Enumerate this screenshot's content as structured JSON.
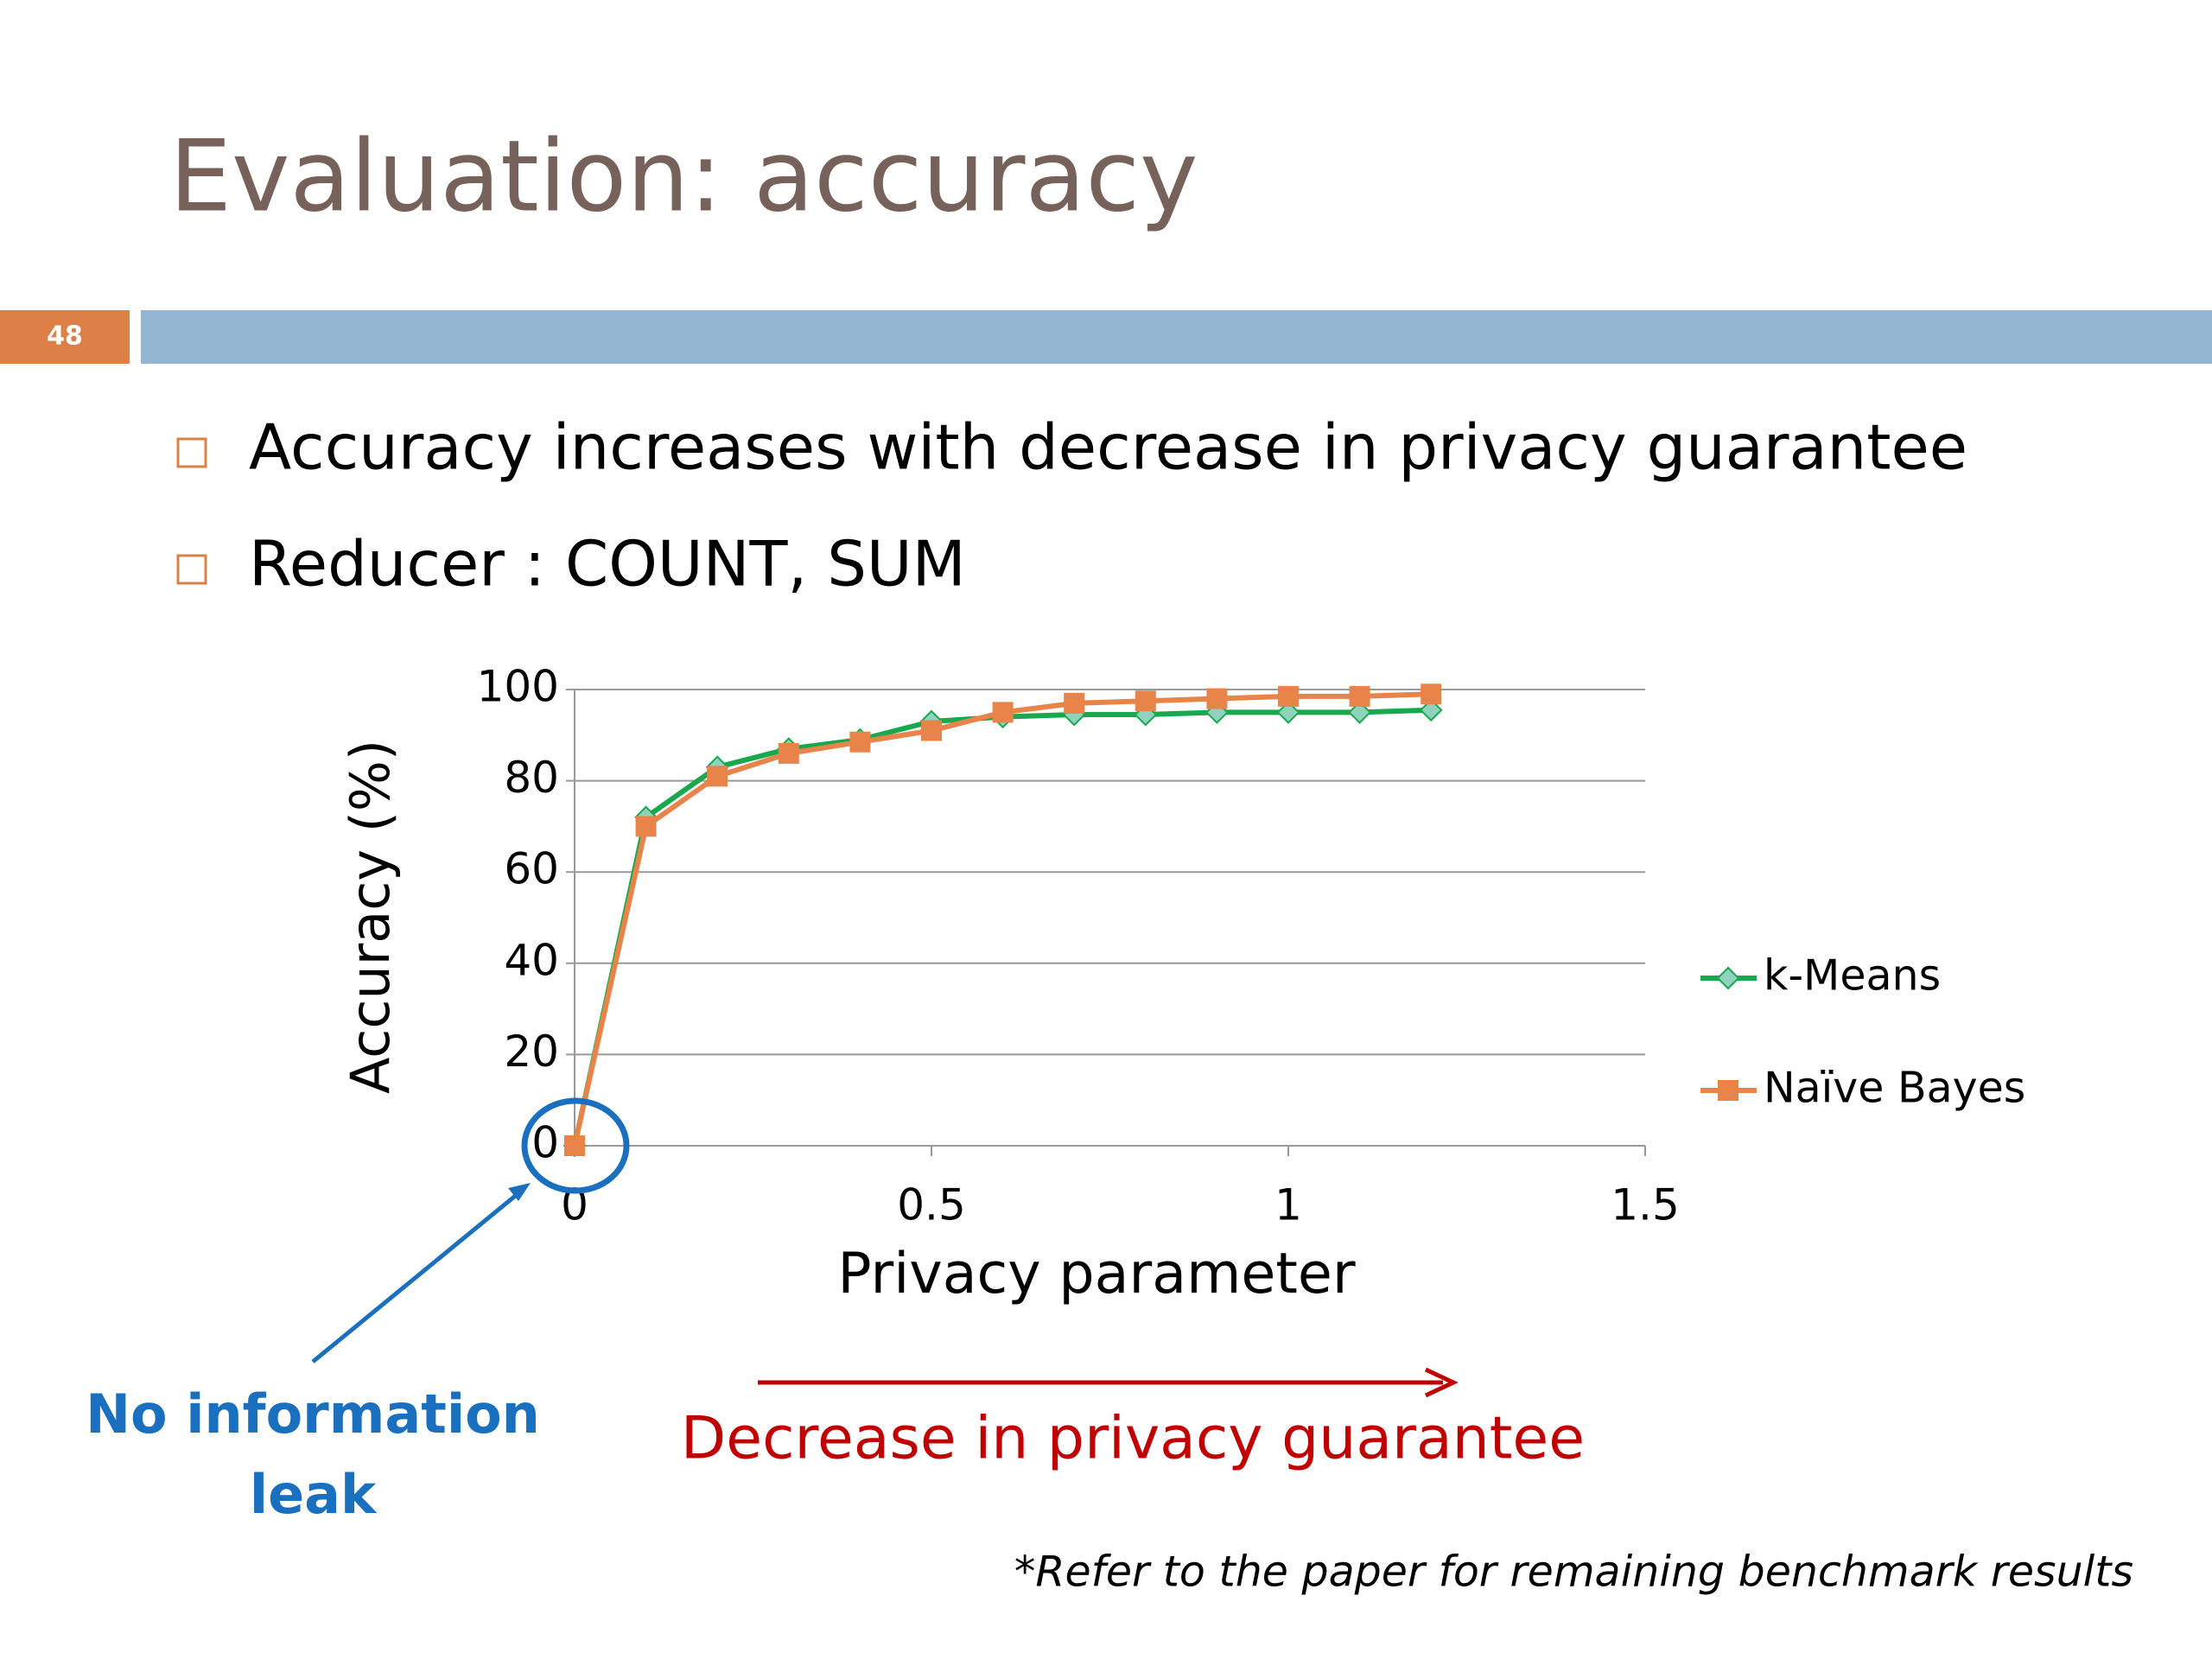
{
  "slide": {
    "title": "Evaluation: accuracy",
    "page_number": "48",
    "bullets": [
      "Accuracy increases with decrease in privacy guarantee",
      "Reducer : COUNT, SUM"
    ],
    "annotations": {
      "origin_note": [
        "No information",
        "leak"
      ],
      "arrow_note": "Decrease in privacy guarantee",
      "footnote": "*Refer to the paper for remaining benchmark results"
    }
  },
  "chart_data": {
    "type": "line",
    "x_label": "Privacy parameter",
    "y_label": "Accuracy (%)",
    "x": [
      0,
      0.1,
      0.2,
      0.3,
      0.4,
      0.5,
      0.6,
      0.7,
      0.8,
      0.9,
      1,
      1.1,
      1.2
    ],
    "series": [
      {
        "name": "k-Means",
        "color": "#1aa84e",
        "values": [
          0,
          72,
          83,
          87,
          89,
          93,
          94,
          94.5,
          94.5,
          95,
          95,
          95,
          95.5
        ]
      },
      {
        "name": "Naïve Bayes",
        "color": "#e8844a",
        "values": [
          0,
          70,
          81,
          86,
          88.5,
          91,
          95,
          97,
          97.5,
          98,
          98.5,
          98.5,
          99
        ]
      }
    ],
    "xlim": [
      0,
      1.5
    ],
    "xticks": [
      0,
      0.5,
      1,
      1.5
    ],
    "ylim": [
      0,
      100
    ],
    "yticks": [
      0,
      20,
      40,
      60,
      80,
      100
    ],
    "grid": true,
    "legend": "right"
  }
}
